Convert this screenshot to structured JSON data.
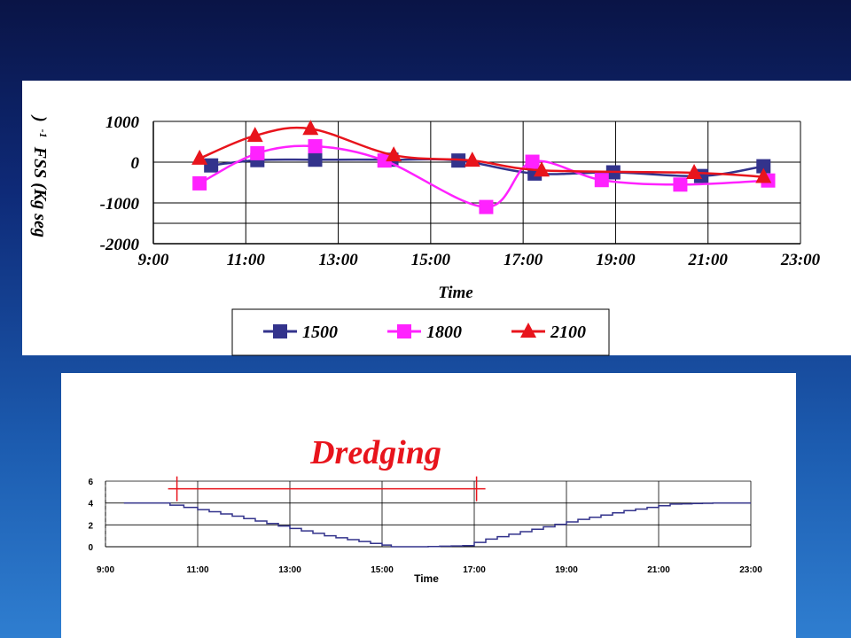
{
  "chart_data": [
    {
      "type": "line",
      "title": "",
      "xlabel": "Time",
      "ylabel": "FSS (Kg seg",
      "ylabel_superscript": "-1",
      "ylabel_close": ")",
      "x_ticks": [
        "9:00",
        "11:00",
        "13:00",
        "15:00",
        "17:00",
        "19:00",
        "21:00",
        "23:00"
      ],
      "y_ticks": [
        "1000",
        "0",
        "-1000",
        "-2000"
      ],
      "xlim": [
        9,
        23
      ],
      "ylim": [
        -2000,
        1000
      ],
      "grid": true,
      "legend_position": "bottom",
      "series": [
        {
          "name": "1500",
          "color": "#33338c",
          "marker": "square",
          "x": [
            10.25,
            11.25,
            12.5,
            14.15,
            15.6,
            17.25,
            18.95,
            20.85,
            22.2
          ],
          "y": [
            -80,
            50,
            60,
            60,
            40,
            -280,
            -250,
            -340,
            -100
          ]
        },
        {
          "name": "1800",
          "color": "#ff22ff",
          "marker": "square",
          "x": [
            10.0,
            11.25,
            12.5,
            14.0,
            16.2,
            17.2,
            18.7,
            20.4,
            22.3
          ],
          "y": [
            -520,
            220,
            390,
            40,
            -1100,
            10,
            -440,
            -550,
            -450
          ]
        },
        {
          "name": "2100",
          "color": "#e8141c",
          "marker": "triangle",
          "x": [
            10.0,
            11.2,
            12.4,
            14.2,
            15.9,
            17.4,
            20.7,
            22.2
          ],
          "y": [
            90,
            650,
            820,
            170,
            40,
            -200,
            -260,
            -360
          ]
        }
      ]
    },
    {
      "type": "line",
      "xlabel": "Time",
      "x_ticks": [
        "9:00",
        "11:00",
        "13:00",
        "15:00",
        "17:00",
        "19:00",
        "21:00",
        "23:00"
      ],
      "y_ticks": [
        "6",
        "4",
        "2",
        "0"
      ],
      "xlim": [
        9,
        23
      ],
      "ylim": [
        0,
        6
      ],
      "grid": true,
      "series_color": "#33338c",
      "x": [
        9.4,
        10.4,
        11.0,
        12.0,
        13.0,
        14.0,
        15.0,
        15.4,
        16.0,
        17.0,
        17.5,
        18.5,
        19.5,
        20.5,
        21.5,
        22.4,
        23.0
      ],
      "y": [
        4.0,
        4.0,
        3.6,
        2.8,
        1.9,
        1.0,
        0.3,
        0.0,
        0.0,
        0.1,
        0.7,
        1.6,
        2.5,
        3.3,
        3.9,
        4.0,
        4.0
      ],
      "annotation": {
        "text": "Dredging",
        "color": "#e8141c",
        "x_start": 10.55,
        "x_end": 17.05,
        "y": 5.3
      }
    }
  ]
}
